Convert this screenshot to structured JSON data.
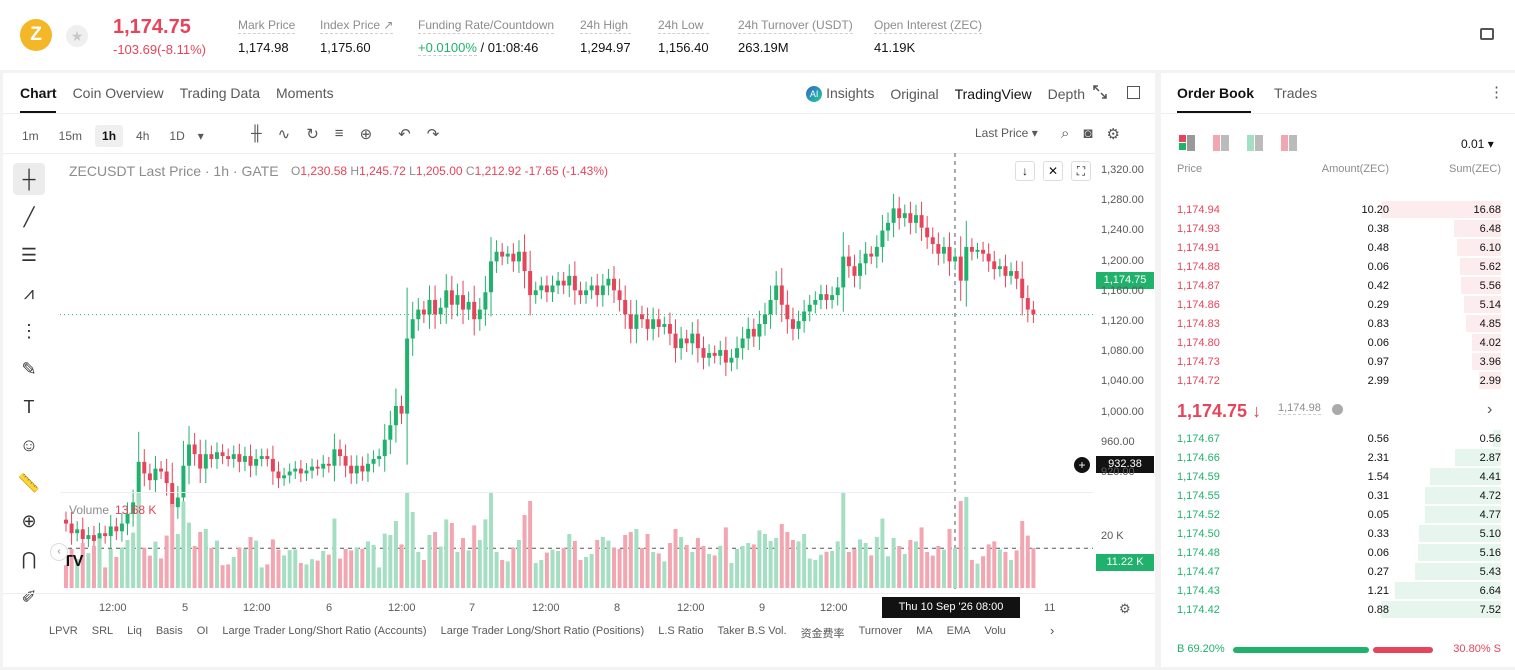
{
  "header": {
    "coin_symbol": "Z",
    "last_price": "1,174.75",
    "change": "-103.69(-8.11%)",
    "stats": [
      {
        "label": "Mark Price",
        "value": "1,174.98"
      },
      {
        "label": "Index Price ↗",
        "value": "1,175.60"
      },
      {
        "label": "Funding Rate/Countdown",
        "value_green": "+0.0100%",
        "value": "/ 01:08:46"
      },
      {
        "label": "24h High",
        "value": "1,294.97"
      },
      {
        "label": "24h Low",
        "value": "1,156.40"
      },
      {
        "label": "24h Turnover (USDT)",
        "value": "263.19M"
      },
      {
        "label": "Open Interest (ZEC)",
        "value": "41.19K"
      }
    ]
  },
  "chart_panel": {
    "tabs": [
      "Chart",
      "Coin Overview",
      "Trading Data",
      "Moments"
    ],
    "right_tabs": {
      "insights": "Insights",
      "original": "Original",
      "tradingview": "TradingView",
      "depth": "Depth"
    },
    "intervals": [
      "1m",
      "15m",
      "1h",
      "4h",
      "1D"
    ],
    "price_source": "Last Price",
    "title": "ZECUSDT Last Price · 1h · GATE",
    "ohlc": {
      "o_label": "O",
      "o": "1,230.58",
      "h_label": "H",
      "h": "1,245.72",
      "l_label": "L",
      "l": "1,205.00",
      "c_label": "C",
      "c": "1,212.92",
      "chg": "-17.65 (-1.43%)"
    },
    "price_axis": [
      "1,320.00",
      "1,280.00",
      "1,240.00",
      "1,200.00",
      "1,160.00",
      "1,120.00",
      "1,080.00",
      "1,040.00",
      "1,000.00",
      "960.00",
      "920.00"
    ],
    "last_price_tag": "1,174.75",
    "cross_price_tag": "932.38",
    "volume_label": "Volume",
    "volume_value": "13.68 K",
    "volume_axis": "20 K",
    "volume_tag": "11.22 K",
    "time_axis": [
      "12:00",
      "5",
      "12:00",
      "6",
      "12:00",
      "7",
      "12:00",
      "8",
      "12:00",
      "9",
      "12:00",
      "11"
    ],
    "crosshair_time": "Thu 10 Sep '26   08:00",
    "bottom_tabs": [
      "LPVR",
      "SRL",
      "Liq",
      "Basis",
      "OI",
      "Large Trader Long/Short Ratio (Accounts)",
      "Large Trader Long/Short Ratio (Positions)",
      "L.S Ratio",
      "Taker B.S Vol.",
      "资金费率",
      "Turnover",
      "MA",
      "EMA",
      "Volu"
    ]
  },
  "order_book": {
    "tabs": [
      "Order Book",
      "Trades"
    ],
    "precision": "0.01",
    "headers": {
      "price": "Price",
      "amount": "Amount(ZEC)",
      "sum": "Sum(ZEC)"
    },
    "asks": [
      {
        "price": "1,174.94",
        "amount": "10.20",
        "sum": "16.68",
        "depth": 1.0
      },
      {
        "price": "1,174.93",
        "amount": "0.38",
        "sum": "6.48",
        "depth": 0.39
      },
      {
        "price": "1,174.91",
        "amount": "0.48",
        "sum": "6.10",
        "depth": 0.37
      },
      {
        "price": "1,174.88",
        "amount": "0.06",
        "sum": "5.62",
        "depth": 0.34
      },
      {
        "price": "1,174.87",
        "amount": "0.42",
        "sum": "5.56",
        "depth": 0.33
      },
      {
        "price": "1,174.86",
        "amount": "0.29",
        "sum": "5.14",
        "depth": 0.31
      },
      {
        "price": "1,174.83",
        "amount": "0.83",
        "sum": "4.85",
        "depth": 0.29
      },
      {
        "price": "1,174.80",
        "amount": "0.06",
        "sum": "4.02",
        "depth": 0.24
      },
      {
        "price": "1,174.73",
        "amount": "0.97",
        "sum": "3.96",
        "depth": 0.24
      },
      {
        "price": "1,174.72",
        "amount": "2.99",
        "sum": "2.99",
        "depth": 0.18
      }
    ],
    "mid_price": "1,174.75 ↓",
    "mid_mark": "1,174.98",
    "bids": [
      {
        "price": "1,174.67",
        "amount": "0.56",
        "sum": "0.56",
        "depth": 0.07
      },
      {
        "price": "1,174.66",
        "amount": "2.31",
        "sum": "2.87",
        "depth": 0.38
      },
      {
        "price": "1,174.59",
        "amount": "1.54",
        "sum": "4.41",
        "depth": 0.59
      },
      {
        "price": "1,174.55",
        "amount": "0.31",
        "sum": "4.72",
        "depth": 0.63
      },
      {
        "price": "1,174.52",
        "amount": "0.05",
        "sum": "4.77",
        "depth": 0.63
      },
      {
        "price": "1,174.50",
        "amount": "0.33",
        "sum": "5.10",
        "depth": 0.68
      },
      {
        "price": "1,174.48",
        "amount": "0.06",
        "sum": "5.16",
        "depth": 0.69
      },
      {
        "price": "1,174.47",
        "amount": "0.27",
        "sum": "5.43",
        "depth": 0.72
      },
      {
        "price": "1,174.43",
        "amount": "1.21",
        "sum": "6.64",
        "depth": 0.88
      },
      {
        "price": "1,174.42",
        "amount": "0.88",
        "sum": "7.52",
        "depth": 1.0
      }
    ],
    "buy_ratio": "B 69.20%",
    "sell_ratio": "30.80% S",
    "buy_fraction": 0.692
  },
  "colors": {
    "up": "#20b26c",
    "down": "#e5445a",
    "up_light": "#a5dfc3",
    "down_light": "#f2a6b1"
  },
  "chart_data": {
    "type": "candlestick",
    "series": [
      {
        "values": [
          [
            962,
            958
          ],
          [
            958,
            948
          ],
          [
            948,
            952
          ],
          [
            952,
            942
          ],
          [
            942,
            946
          ],
          [
            946,
            940
          ],
          [
            940,
            948
          ],
          [
            948,
            945
          ],
          [
            945,
            955
          ],
          [
            955,
            950
          ],
          [
            950,
            958
          ],
          [
            958,
            968
          ],
          [
            968,
            980
          ],
          [
            980,
            1022
          ],
          [
            1022,
            1010
          ],
          [
            1010,
            1003
          ],
          [
            1003,
            1015
          ],
          [
            1015,
            1012
          ],
          [
            1012,
            1000
          ],
          [
            1000,
            975
          ],
          [
            975,
            985
          ],
          [
            985,
            1018
          ],
          [
            1018,
            1040
          ],
          [
            1040,
            1030
          ],
          [
            1030,
            1015
          ],
          [
            1015,
            1030
          ],
          [
            1030,
            1025
          ],
          [
            1025,
            1032
          ],
          [
            1032,
            1028
          ],
          [
            1028,
            1025
          ],
          [
            1025,
            1030
          ],
          [
            1030,
            1022
          ],
          [
            1022,
            1028
          ],
          [
            1028,
            1018
          ],
          [
            1018,
            1025
          ],
          [
            1025,
            1028
          ],
          [
            1028,
            1025
          ],
          [
            1025,
            1012
          ],
          [
            1012,
            1005
          ],
          [
            1005,
            1008
          ],
          [
            1008,
            1012
          ],
          [
            1012,
            1015
          ],
          [
            1015,
            1010
          ],
          [
            1010,
            1013
          ],
          [
            1013,
            1017
          ],
          [
            1017,
            1015
          ],
          [
            1015,
            1020
          ],
          [
            1020,
            1018
          ],
          [
            1018,
            1035
          ],
          [
            1035,
            1028
          ],
          [
            1028,
            1018
          ],
          [
            1018,
            1010
          ],
          [
            1010,
            1018
          ],
          [
            1018,
            1012
          ],
          [
            1012,
            1020
          ],
          [
            1020,
            1025
          ],
          [
            1025,
            1028
          ],
          [
            1028,
            1045
          ],
          [
            1045,
            1060
          ],
          [
            1060,
            1080
          ],
          [
            1080,
            1072
          ],
          [
            1072,
            1150
          ],
          [
            1150,
            1170
          ],
          [
            1170,
            1180
          ],
          [
            1180,
            1175
          ],
          [
            1175,
            1190
          ],
          [
            1190,
            1175
          ],
          [
            1175,
            1182
          ],
          [
            1182,
            1200
          ],
          [
            1200,
            1185
          ],
          [
            1185,
            1195
          ],
          [
            1195,
            1180
          ],
          [
            1180,
            1188
          ],
          [
            1188,
            1170
          ],
          [
            1170,
            1180
          ],
          [
            1180,
            1198
          ],
          [
            1198,
            1230
          ],
          [
            1230,
            1240
          ],
          [
            1240,
            1235
          ],
          [
            1235,
            1238
          ],
          [
            1238,
            1230
          ],
          [
            1230,
            1240
          ],
          [
            1240,
            1220
          ],
          [
            1220,
            1195
          ],
          [
            1195,
            1200
          ],
          [
            1200,
            1205
          ],
          [
            1205,
            1198
          ],
          [
            1198,
            1205
          ],
          [
            1205,
            1210
          ],
          [
            1210,
            1205
          ],
          [
            1205,
            1215
          ],
          [
            1215,
            1200
          ],
          [
            1200,
            1195
          ],
          [
            1195,
            1200
          ],
          [
            1200,
            1205
          ],
          [
            1205,
            1195
          ],
          [
            1195,
            1205
          ],
          [
            1205,
            1212
          ],
          [
            1212,
            1200
          ],
          [
            1200,
            1190
          ],
          [
            1190,
            1175
          ],
          [
            1175,
            1160
          ],
          [
            1160,
            1175
          ],
          [
            1175,
            1170
          ],
          [
            1170,
            1160
          ],
          [
            1160,
            1170
          ],
          [
            1170,
            1162
          ],
          [
            1162,
            1165
          ],
          [
            1165,
            1155
          ],
          [
            1155,
            1140
          ],
          [
            1140,
            1150
          ],
          [
            1150,
            1145
          ],
          [
            1145,
            1155
          ],
          [
            1155,
            1140
          ],
          [
            1140,
            1130
          ],
          [
            1130,
            1135
          ],
          [
            1135,
            1132
          ],
          [
            1132,
            1138
          ],
          [
            1138,
            1125
          ],
          [
            1125,
            1130
          ],
          [
            1130,
            1140
          ],
          [
            1140,
            1150
          ],
          [
            1150,
            1160
          ],
          [
            1160,
            1152
          ],
          [
            1152,
            1165
          ],
          [
            1165,
            1175
          ],
          [
            1175,
            1190
          ],
          [
            1190,
            1205
          ],
          [
            1205,
            1185
          ],
          [
            1185,
            1170
          ],
          [
            1170,
            1160
          ],
          [
            1160,
            1168
          ],
          [
            1168,
            1178
          ],
          [
            1178,
            1185
          ],
          [
            1185,
            1190
          ],
          [
            1190,
            1196
          ],
          [
            1196,
            1190
          ],
          [
            1190,
            1195
          ],
          [
            1195,
            1203
          ],
          [
            1203,
            1235
          ],
          [
            1235,
            1225
          ],
          [
            1225,
            1215
          ],
          [
            1215,
            1228
          ],
          [
            1228,
            1238
          ],
          [
            1238,
            1235
          ],
          [
            1235,
            1245
          ],
          [
            1245,
            1262
          ],
          [
            1262,
            1270
          ],
          [
            1270,
            1285
          ],
          [
            1285,
            1275
          ],
          [
            1275,
            1280
          ],
          [
            1280,
            1270
          ],
          [
            1270,
            1278
          ],
          [
            1278,
            1265
          ],
          [
            1265,
            1255
          ],
          [
            1255,
            1248
          ],
          [
            1248,
            1238
          ],
          [
            1238,
            1245
          ],
          [
            1245,
            1230
          ],
          [
            1230,
            1235
          ],
          [
            1235,
            1210
          ],
          [
            1210,
            1245
          ],
          [
            1245,
            1240
          ],
          [
            1240,
            1242
          ],
          [
            1242,
            1238
          ],
          [
            1238,
            1230
          ],
          [
            1230,
            1222
          ],
          [
            1222,
            1225
          ],
          [
            1225,
            1215
          ],
          [
            1215,
            1220
          ],
          [
            1220,
            1212
          ],
          [
            1212,
            1192
          ],
          [
            1192,
            1180
          ],
          [
            1180,
            1175
          ]
        ]
      }
    ],
    "ylim": [
      915,
      1330
    ]
  }
}
